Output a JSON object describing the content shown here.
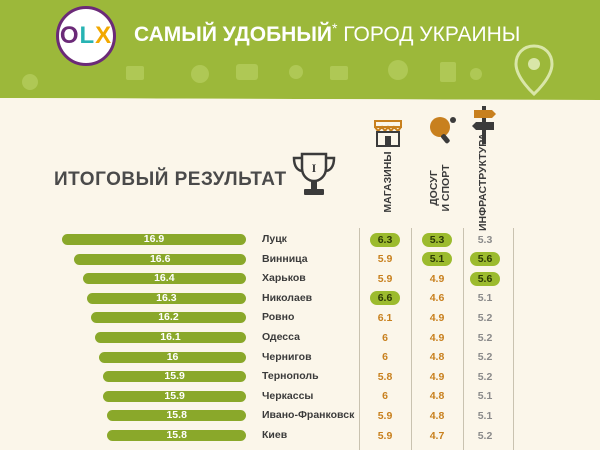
{
  "header": {
    "logo": "OLX",
    "title_bold": "САМЫЙ УДОБНЫЙ",
    "asterisk": "*",
    "title_rest": "ГОРОД УКРАИНЫ"
  },
  "subtitle": "ИТОГОВЫЙ РЕЗУЛЬТАТ",
  "trophy_label": "I",
  "columns": {
    "shops": "МАГАЗИНЫ",
    "leisure_line1": "ДОСУГ",
    "leisure_line2": "И СПОРТ",
    "infra": "ИНФРАСТРУКТУРА"
  },
  "icons": [
    "shop-icon",
    "ping-pong-icon",
    "signpost-icon",
    "trophy-icon",
    "location-pin-icon"
  ],
  "colors": {
    "header_green": "#9cb83a",
    "bar_green": "#8aa82a",
    "accent_orange": "#c8801e",
    "highlight_green": "#9cbb2e"
  },
  "chart_data": {
    "type": "bar",
    "orientation": "horizontal",
    "title": "ИТОГОВЫЙ РЕЗУЛЬТАТ",
    "categories": [
      "Луцк",
      "Винница",
      "Харьков",
      "Николаев",
      "Ровно",
      "Одесса",
      "Чернигов",
      "Тернополь",
      "Черкассы",
      "Ивано-Франковск",
      "Киев"
    ],
    "series": [
      {
        "name": "ИТОГОВЫЙ РЕЗУЛЬТАТ",
        "values": [
          16.9,
          16.6,
          16.4,
          16.3,
          16.2,
          16.1,
          16,
          15.9,
          15.9,
          15.8,
          15.8
        ]
      },
      {
        "name": "МАГАЗИНЫ",
        "values": [
          6.3,
          5.9,
          5.9,
          6.6,
          6.1,
          6,
          6,
          5.8,
          6,
          5.9,
          5.9
        ]
      },
      {
        "name": "ДОСУГ И СПОРТ",
        "values": [
          5.3,
          5.1,
          4.9,
          4.6,
          4.9,
          4.9,
          4.8,
          4.9,
          4.8,
          4.8,
          4.7
        ]
      },
      {
        "name": "ИНФРАСТРУКТУРА",
        "values": [
          5.3,
          5.6,
          5.6,
          5.1,
          5.2,
          5.2,
          5.2,
          5.2,
          5.1,
          5.1,
          5.2
        ]
      }
    ],
    "total_labels": [
      "16.9",
      "16.6",
      "16.4",
      "16.3",
      "16.2",
      "16.1",
      "16",
      "15.9",
      "15.9",
      "15.8",
      "15.8"
    ],
    "shops_labels": [
      "6.3",
      "5.9",
      "5.9",
      "6.6",
      "6.1",
      "6",
      "6",
      "5.8",
      "6",
      "5.9",
      "5.9"
    ],
    "leisure_labels": [
      "5.3",
      "5.1",
      "4.9",
      "4.6",
      "4.9",
      "4.9",
      "4.8",
      "4.9",
      "4.8",
      "4.8",
      "4.7"
    ],
    "infra_labels": [
      "5.3",
      "5.6",
      "5.6",
      "5.1",
      "5.2",
      "5.2",
      "5.2",
      "5.2",
      "5.1",
      "5.1",
      "5.2"
    ],
    "highlighted": {
      "shops": [
        0,
        3
      ],
      "leisure": [
        0,
        1
      ],
      "infra": [
        1,
        2
      ]
    },
    "legend": "none",
    "grid": false
  }
}
